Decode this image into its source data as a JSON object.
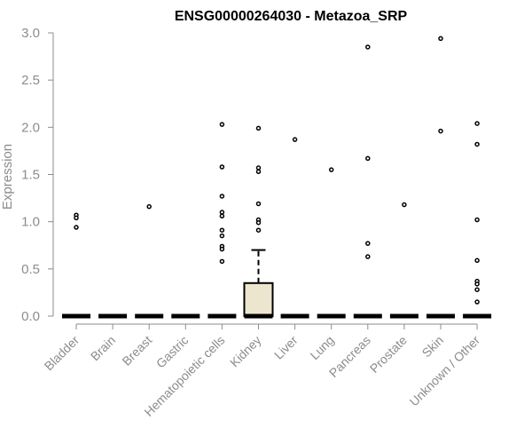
{
  "chart_data": {
    "type": "boxplot",
    "title": "ENSG00000264030 - Metazoa_SRP",
    "xlabel": "",
    "ylabel": "Expression",
    "ylim": [
      0,
      3.0
    ],
    "yticks": [
      "0.0",
      "0.5",
      "1.0",
      "1.5",
      "2.0",
      "2.5",
      "3.0"
    ],
    "grid": false,
    "colors": {
      "box_fill": "#ede6cf",
      "stroke": "#000000",
      "axis": "#8c8c8c"
    },
    "categories": [
      "Bladder",
      "Brain",
      "Breast",
      "Gastric",
      "Hematopoietic cells",
      "Kidney",
      "Liver",
      "Lung",
      "Pancreas",
      "Prostate",
      "Skin",
      "Unknown / Other"
    ],
    "boxes": [
      {
        "category": "Bladder",
        "q1": 0,
        "median": 0,
        "q3": 0,
        "whisker_low": 0,
        "whisker_high": 0,
        "outliers": [
          1.07,
          1.04,
          0.94
        ]
      },
      {
        "category": "Brain",
        "q1": 0,
        "median": 0,
        "q3": 0,
        "whisker_low": 0,
        "whisker_high": 0,
        "outliers": []
      },
      {
        "category": "Breast",
        "q1": 0,
        "median": 0,
        "q3": 0,
        "whisker_low": 0,
        "whisker_high": 0,
        "outliers": [
          1.16
        ]
      },
      {
        "category": "Gastric",
        "q1": 0,
        "median": 0,
        "q3": 0,
        "whisker_low": 0,
        "whisker_high": 0,
        "outliers": []
      },
      {
        "category": "Hematopoietic cells",
        "q1": 0,
        "median": 0,
        "q3": 0,
        "whisker_low": 0,
        "whisker_high": 0,
        "outliers": [
          2.03,
          1.58,
          1.27,
          1.1,
          1.06,
          0.91,
          0.85,
          0.74,
          0.71,
          0.58
        ]
      },
      {
        "category": "Kidney",
        "q1": 0,
        "median": 0,
        "q3": 0.35,
        "whisker_low": 0,
        "whisker_high": 0.7,
        "outliers": [
          1.99,
          1.57,
          1.53,
          1.19,
          1.02,
          0.99,
          0.91
        ]
      },
      {
        "category": "Liver",
        "q1": 0,
        "median": 0,
        "q3": 0,
        "whisker_low": 0,
        "whisker_high": 0,
        "outliers": [
          1.87
        ]
      },
      {
        "category": "Lung",
        "q1": 0,
        "median": 0,
        "q3": 0,
        "whisker_low": 0,
        "whisker_high": 0,
        "outliers": [
          1.55
        ]
      },
      {
        "category": "Pancreas",
        "q1": 0,
        "median": 0,
        "q3": 0,
        "whisker_low": 0,
        "whisker_high": 0,
        "outliers": [
          2.85,
          1.67,
          0.77,
          0.63
        ]
      },
      {
        "category": "Prostate",
        "q1": 0,
        "median": 0,
        "q3": 0,
        "whisker_low": 0,
        "whisker_high": 0,
        "outliers": [
          1.18
        ]
      },
      {
        "category": "Skin",
        "q1": 0,
        "median": 0,
        "q3": 0,
        "whisker_low": 0,
        "whisker_high": 0,
        "outliers": [
          2.94,
          1.96
        ]
      },
      {
        "category": "Unknown / Other",
        "q1": 0,
        "median": 0,
        "q3": 0,
        "whisker_low": 0,
        "whisker_high": 0,
        "outliers": [
          2.04,
          1.82,
          1.02,
          0.59,
          0.37,
          0.34,
          0.28,
          0.15
        ]
      }
    ]
  }
}
